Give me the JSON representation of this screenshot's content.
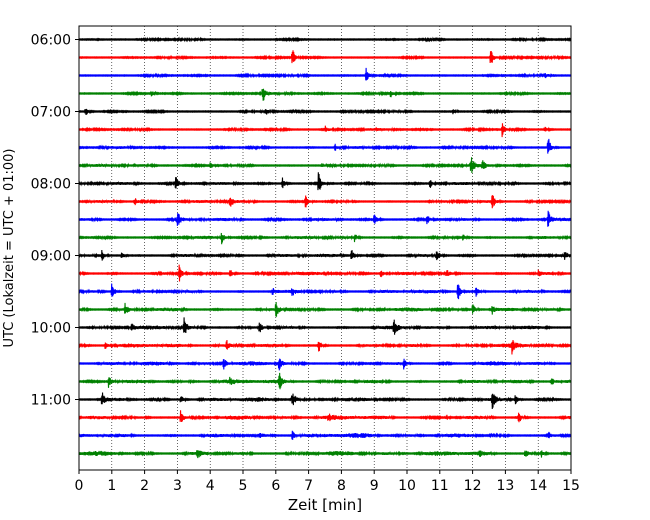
{
  "chart_data": {
    "type": "line",
    "xlabel": "Zeit  [min]",
    "ylabel": "UTC (Lokalzeit = UTC + 01:00)",
    "xlim": [
      0,
      15
    ],
    "xticks": [
      0,
      1,
      2,
      3,
      4,
      5,
      6,
      7,
      8,
      9,
      10,
      11,
      12,
      13,
      14,
      15
    ],
    "xtick_labels": [
      "0",
      "1",
      "2",
      "3",
      "4",
      "5",
      "6",
      "7",
      "8",
      "9",
      "10",
      "11",
      "12",
      "13",
      "14",
      "15"
    ],
    "ytick_labels": [
      {
        "trace": 0,
        "label": "06:00"
      },
      {
        "trace": 4,
        "label": "07:00"
      },
      {
        "trace": 8,
        "label": "08:00"
      },
      {
        "trace": 12,
        "label": "09:00"
      },
      {
        "trace": 16,
        "label": "10:00"
      },
      {
        "trace": 20,
        "label": "11:00"
      }
    ],
    "grid": {
      "x": true,
      "y": false,
      "style": "dotted"
    },
    "colors": [
      "#000000",
      "#ff0000",
      "#0000ff",
      "#008000"
    ],
    "series": [
      {
        "start": "06:00",
        "color": "#000000",
        "bursts": []
      },
      {
        "start": "06:15",
        "color": "#ff0000",
        "bursts": [
          [
            6.5,
            10
          ],
          [
            12.55,
            10
          ]
        ]
      },
      {
        "start": "06:30",
        "color": "#0000ff",
        "bursts": [
          [
            8.75,
            9
          ],
          [
            14.2,
            4
          ]
        ]
      },
      {
        "start": "06:45",
        "color": "#008000",
        "bursts": [
          [
            5.6,
            10
          ],
          [
            2.2,
            3
          ],
          [
            9.5,
            4
          ]
        ]
      },
      {
        "start": "07:00",
        "color": "#000000",
        "bursts": [
          [
            0.2,
            5
          ],
          [
            5.7,
            3
          ],
          [
            11.4,
            3
          ]
        ]
      },
      {
        "start": "07:15",
        "color": "#ff0000",
        "bursts": [
          [
            7.5,
            4
          ],
          [
            12.9,
            8
          ],
          [
            14.2,
            3
          ]
        ]
      },
      {
        "start": "07:30",
        "color": "#0000ff",
        "bursts": [
          [
            7.8,
            4
          ],
          [
            14.3,
            12
          ]
        ]
      },
      {
        "start": "07:45",
        "color": "#008000",
        "bursts": [
          [
            11.95,
            10
          ],
          [
            4.0,
            4
          ],
          [
            7.4,
            3
          ],
          [
            12.3,
            5
          ]
        ]
      },
      {
        "start": "08:00",
        "color": "#000000",
        "bursts": [
          [
            2.95,
            8
          ],
          [
            7.3,
            12
          ],
          [
            6.2,
            6
          ],
          [
            10.7,
            5
          ]
        ]
      },
      {
        "start": "08:15",
        "color": "#ff0000",
        "bursts": [
          [
            6.9,
            9
          ],
          [
            12.6,
            8
          ],
          [
            4.6,
            7
          ],
          [
            1.7,
            4
          ]
        ]
      },
      {
        "start": "08:30",
        "color": "#0000ff",
        "bursts": [
          [
            3.0,
            9
          ],
          [
            9.0,
            7
          ],
          [
            14.3,
            9
          ],
          [
            10.6,
            6
          ]
        ]
      },
      {
        "start": "08:45",
        "color": "#008000",
        "bursts": [
          [
            4.35,
            6
          ],
          [
            8.4,
            4
          ],
          [
            11.7,
            4
          ]
        ]
      },
      {
        "start": "09:00",
        "color": "#000000",
        "bursts": [
          [
            8.3,
            9
          ],
          [
            0.7,
            6
          ],
          [
            1.3,
            4
          ],
          [
            10.9,
            6
          ],
          [
            14.8,
            4
          ]
        ]
      },
      {
        "start": "09:15",
        "color": "#ff0000",
        "bursts": [
          [
            3.05,
            9
          ],
          [
            4.6,
            5
          ],
          [
            9.2,
            5
          ],
          [
            11.2,
            4
          ],
          [
            14.0,
            3
          ]
        ]
      },
      {
        "start": "09:30",
        "color": "#0000ff",
        "bursts": [
          [
            1.0,
            10
          ],
          [
            11.55,
            10
          ],
          [
            5.9,
            4
          ],
          [
            6.5,
            4
          ],
          [
            12.1,
            5
          ]
        ]
      },
      {
        "start": "09:45",
        "color": "#008000",
        "bursts": [
          [
            1.4,
            6
          ],
          [
            6.0,
            9
          ],
          [
            12.0,
            6
          ],
          [
            12.6,
            5
          ]
        ]
      },
      {
        "start": "10:00",
        "color": "#000000",
        "bursts": [
          [
            3.2,
            10
          ],
          [
            9.6,
            8
          ],
          [
            5.5,
            6
          ],
          [
            1.6,
            4
          ]
        ]
      },
      {
        "start": "10:15",
        "color": "#ff0000",
        "bursts": [
          [
            7.3,
            8
          ],
          [
            13.2,
            7
          ],
          [
            4.5,
            5
          ],
          [
            0.8,
            4
          ]
        ]
      },
      {
        "start": "10:30",
        "color": "#0000ff",
        "bursts": [
          [
            4.4,
            7
          ],
          [
            6.1,
            8
          ],
          [
            9.9,
            6
          ]
        ]
      },
      {
        "start": "10:45",
        "color": "#008000",
        "bursts": [
          [
            0.9,
            7
          ],
          [
            6.1,
            9
          ],
          [
            14.4,
            5
          ],
          [
            4.6,
            3
          ]
        ]
      },
      {
        "start": "11:00",
        "color": "#000000",
        "bursts": [
          [
            0.7,
            8
          ],
          [
            6.5,
            10
          ],
          [
            12.6,
            9
          ],
          [
            3.1,
            5
          ],
          [
            13.3,
            6
          ]
        ]
      },
      {
        "start": "11:15",
        "color": "#ff0000",
        "bursts": [
          [
            3.1,
            8
          ],
          [
            13.4,
            7
          ],
          [
            11.2,
            3
          ],
          [
            7.6,
            3
          ]
        ]
      },
      {
        "start": "11:30",
        "color": "#0000ff",
        "bursts": [
          [
            6.5,
            6
          ],
          [
            5.5,
            4
          ],
          [
            14.3,
            4
          ]
        ]
      },
      {
        "start": "11:45",
        "color": "#008000",
        "bursts": [
          [
            3.6,
            5
          ],
          [
            13.6,
            5
          ],
          [
            14.1,
            4
          ],
          [
            12.2,
            3
          ]
        ]
      }
    ]
  }
}
